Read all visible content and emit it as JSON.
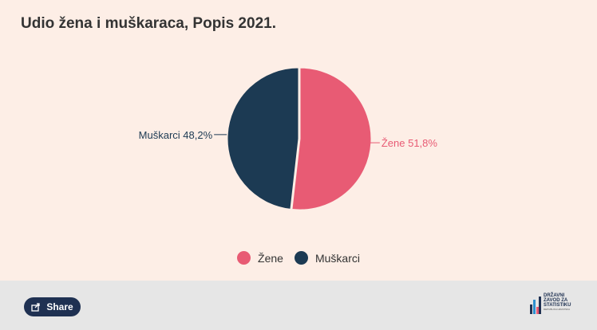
{
  "chart_data": {
    "type": "pie",
    "title": "Udio žena i muškaraca, Popis 2021.",
    "categories": [
      "Žene",
      "Muškarci"
    ],
    "values": [
      51.8,
      48.2
    ],
    "colors": [
      "#e85b74",
      "#1c3a53"
    ],
    "data_labels": [
      "Žene 51,8%",
      "Muškarci 48,2%"
    ],
    "legend": {
      "placement": "bottom-center",
      "items": [
        "Žene",
        "Muškarci"
      ]
    }
  },
  "footer": {
    "share_label": "Share",
    "share_icon": "share-icon",
    "logo": {
      "lines": [
        "DRŽAVNI",
        "ZAVOD",
        "STATISTIKU"
      ],
      "line_ampersand": "ZA",
      "subtitle": "REPUBLIKA HRVATSKA"
    }
  },
  "colors": {
    "chart_background": "#fdeee6",
    "footer_background": "#e6e6e6",
    "button_background": "#1f3152"
  }
}
